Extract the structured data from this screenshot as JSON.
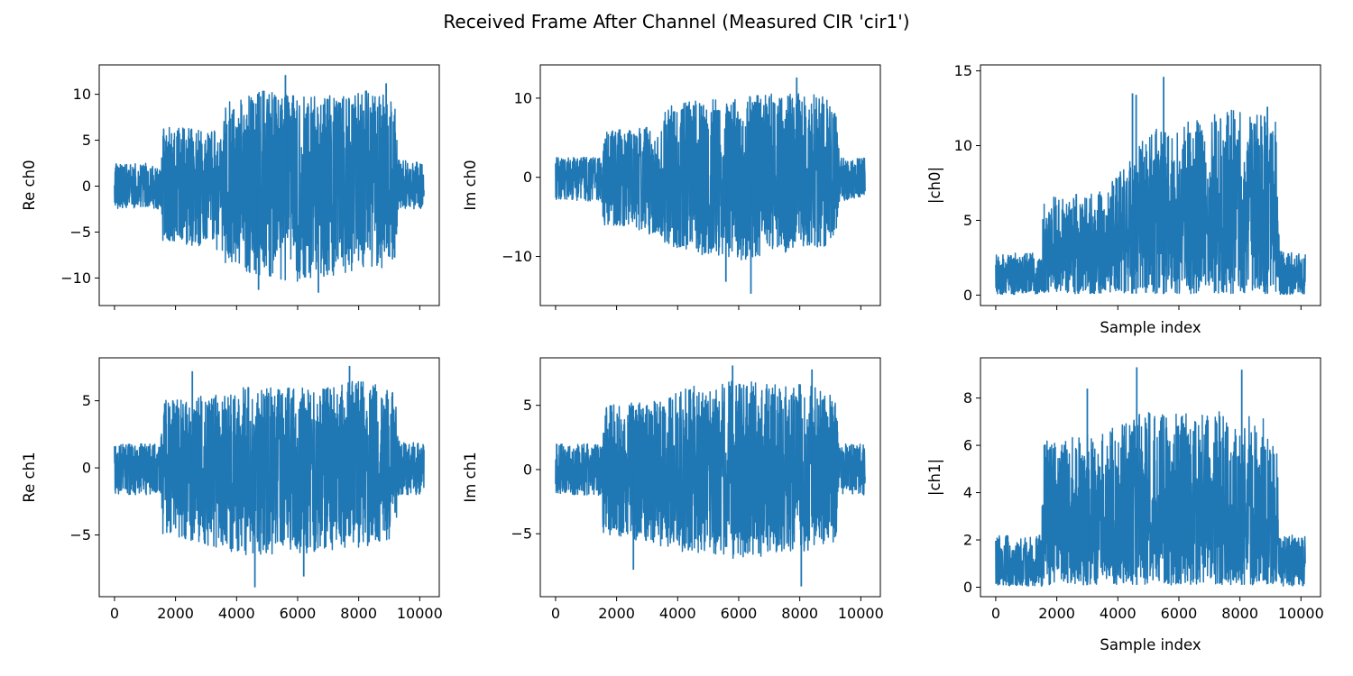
{
  "figure": {
    "suptitle": "Received Frame After Channel (Measured CIR 'cir1')"
  },
  "chart_data": [
    {
      "id": "re-ch0",
      "type": "line",
      "ylabel": "Re ch0",
      "xlabel": "",
      "xlim": [
        -500,
        10640
      ],
      "ylim": [
        -13,
        13.2
      ],
      "xticks": [
        0,
        2000,
        4000,
        6000,
        8000,
        10000
      ],
      "show_xticklabels": false,
      "yticks": [
        -10,
        -5,
        0,
        5,
        10
      ],
      "ytick_labels": [
        "−10",
        "−5",
        "0",
        "5",
        "10"
      ],
      "color": "#1f77b4",
      "series": [
        {
          "n_samples": 10140,
          "symmetric": true,
          "envelope": {
            "x": [
              0,
              1500,
              1560,
              3500,
              3600,
              5000,
              6000,
              7500,
              8200,
              8600,
              9000,
              9200,
              9300,
              10140
            ],
            "upper": [
              2.5,
              2.5,
              6.5,
              6.0,
              9.0,
              10.5,
              10.0,
              10.0,
              10.5,
              10.0,
              10.0,
              9.0,
              3.0,
              2.5
            ],
            "lower": [
              -2.5,
              -2.5,
              -6.0,
              -7.0,
              -8.5,
              -10.0,
              -10.5,
              -9.5,
              -9.5,
              -9.0,
              -9.0,
              -8.0,
              -2.5,
              -2.5
            ]
          },
          "spikes": [
            {
              "x": 5600,
              "y": 12.1
            },
            {
              "x": 6680,
              "y": -11.6
            },
            {
              "x": 4720,
              "y": -11.3
            },
            {
              "x": 8900,
              "y": 11.2
            }
          ]
        }
      ]
    },
    {
      "id": "im-ch0",
      "type": "line",
      "ylabel": "Im ch0",
      "xlabel": "",
      "xlim": [
        -500,
        10640
      ],
      "ylim": [
        -16.2,
        14.2
      ],
      "xticks": [
        0,
        2000,
        4000,
        6000,
        8000,
        10000
      ],
      "show_xticklabels": false,
      "yticks": [
        -10,
        0,
        10
      ],
      "ytick_labels": [
        "−10",
        "0",
        "10"
      ],
      "color": "#1f77b4",
      "series": [
        {
          "n_samples": 10140,
          "symmetric": true,
          "envelope": {
            "x": [
              0,
              1500,
              1560,
              3500,
              3600,
              5000,
              6000,
              7500,
              8200,
              8600,
              9000,
              9200,
              9300,
              10140
            ],
            "upper": [
              2.5,
              2.5,
              6.0,
              6.5,
              9.0,
              10.0,
              10.5,
              10.5,
              11.0,
              10.5,
              10.0,
              9.0,
              2.5,
              2.5
            ],
            "lower": [
              -3.0,
              -3.0,
              -6.0,
              -7.5,
              -8.5,
              -10.0,
              -10.5,
              -9.5,
              -9.0,
              -9.0,
              -8.5,
              -7.0,
              -3.0,
              -2.5
            ]
          },
          "spikes": [
            {
              "x": 5580,
              "y": -13.2
            },
            {
              "x": 6400,
              "y": -14.7
            },
            {
              "x": 7900,
              "y": 12.6
            }
          ]
        }
      ]
    },
    {
      "id": "abs-ch0",
      "type": "line",
      "ylabel": "|ch0|",
      "xlabel": "Sample index",
      "xlim": [
        -500,
        10640
      ],
      "ylim": [
        -0.7,
        15.4
      ],
      "xticks": [
        0,
        2000,
        4000,
        6000,
        8000,
        10000
      ],
      "show_xticklabels": false,
      "yticks": [
        0,
        5,
        10,
        15
      ],
      "ytick_labels": [
        "0",
        "5",
        "10",
        "15"
      ],
      "color": "#1f77b4",
      "series": [
        {
          "n_samples": 10140,
          "symmetric": false,
          "envelope": {
            "x": [
              0,
              1500,
              1560,
              3500,
              4200,
              5000,
              6000,
              7000,
              8000,
              9000,
              9200,
              9300,
              10140
            ],
            "upper": [
              2.8,
              2.8,
              6.5,
              7.0,
              9.0,
              11.0,
              11.5,
              12.0,
              12.5,
              12.0,
              11.5,
              3.0,
              2.8
            ],
            "lower": [
              0.05,
              0.05,
              0.1,
              0.1,
              0.1,
              0.1,
              0.1,
              0.1,
              0.1,
              0.1,
              0.1,
              0.05,
              0.05
            ]
          },
          "spikes": [
            {
              "x": 5500,
              "y": 14.6
            },
            {
              "x": 4480,
              "y": 13.5
            },
            {
              "x": 4600,
              "y": 13.4
            },
            {
              "x": 8900,
              "y": 12.6
            }
          ]
        }
      ]
    },
    {
      "id": "re-ch1",
      "type": "line",
      "ylabel": "Re ch1",
      "xlabel": "",
      "xlim": [
        -500,
        10640
      ],
      "ylim": [
        -9.6,
        8.2
      ],
      "xticks": [
        0,
        2000,
        4000,
        6000,
        8000,
        10000
      ],
      "xtick_labels": [
        "0",
        "2000",
        "4000",
        "6000",
        "8000",
        "10000"
      ],
      "yticks": [
        -5,
        0,
        5
      ],
      "ytick_labels": [
        "−5",
        "0",
        "5"
      ],
      "color": "#1f77b4",
      "series": [
        {
          "n_samples": 10140,
          "symmetric": true,
          "envelope": {
            "x": [
              0,
              1500,
              1560,
              3500,
              4200,
              5000,
              6000,
              7500,
              8000,
              9000,
              9200,
              9300,
              10140
            ],
            "upper": [
              1.8,
              1.8,
              5.0,
              5.5,
              6.0,
              6.0,
              6.0,
              6.5,
              6.5,
              6.0,
              5.5,
              2.0,
              1.8
            ],
            "lower": [
              -2.0,
              -2.0,
              -5.0,
              -6.0,
              -6.5,
              -6.5,
              -6.5,
              -6.0,
              -6.0,
              -5.5,
              -5.0,
              -2.0,
              -2.0
            ]
          },
          "spikes": [
            {
              "x": 4600,
              "y": -8.9
            },
            {
              "x": 6200,
              "y": -8.1
            },
            {
              "x": 7700,
              "y": 7.6
            },
            {
              "x": 2550,
              "y": 7.2
            }
          ]
        }
      ]
    },
    {
      "id": "im-ch1",
      "type": "line",
      "ylabel": "Im ch1",
      "xlabel": "",
      "xlim": [
        -500,
        10640
      ],
      "ylim": [
        -9.9,
        8.7
      ],
      "xticks": [
        0,
        2000,
        4000,
        6000,
        8000,
        10000
      ],
      "xtick_labels": [
        "0",
        "2000",
        "4000",
        "6000",
        "8000",
        "10000"
      ],
      "yticks": [
        -5,
        0,
        5
      ],
      "ytick_labels": [
        "−5",
        "0",
        "5"
      ],
      "color": "#1f77b4",
      "series": [
        {
          "n_samples": 10140,
          "symmetric": true,
          "envelope": {
            "x": [
              0,
              1500,
              1560,
              3500,
              4200,
              5000,
              6000,
              7500,
              8000,
              9000,
              9200,
              9300,
              10140
            ],
            "upper": [
              2.0,
              2.0,
              5.0,
              5.5,
              6.5,
              6.5,
              7.0,
              6.5,
              7.0,
              6.0,
              5.5,
              2.0,
              2.0
            ],
            "lower": [
              -2.0,
              -2.0,
              -5.0,
              -6.0,
              -6.5,
              -7.0,
              -7.0,
              -6.5,
              -6.5,
              -6.0,
              -5.5,
              -2.0,
              -2.0
            ]
          },
          "spikes": [
            {
              "x": 5800,
              "y": 8.1
            },
            {
              "x": 8050,
              "y": -9.1
            },
            {
              "x": 8400,
              "y": 7.8
            },
            {
              "x": 2550,
              "y": -7.8
            }
          ]
        }
      ]
    },
    {
      "id": "abs-ch1",
      "type": "line",
      "ylabel": "|ch1|",
      "xlabel": "Sample index",
      "xlim": [
        -500,
        10640
      ],
      "ylim": [
        -0.4,
        9.7
      ],
      "xticks": [
        0,
        2000,
        4000,
        6000,
        8000,
        10000
      ],
      "xtick_labels": [
        "0",
        "2000",
        "4000",
        "6000",
        "8000",
        "10000"
      ],
      "yticks": [
        0,
        2,
        4,
        6,
        8
      ],
      "ytick_labels": [
        "0",
        "2",
        "4",
        "6",
        "8"
      ],
      "color": "#1f77b4",
      "series": [
        {
          "n_samples": 10140,
          "symmetric": false,
          "envelope": {
            "x": [
              0,
              1500,
              1560,
              3500,
              4200,
              5000,
              6000,
              7000,
              8000,
              9000,
              9200,
              9300,
              10140
            ],
            "upper": [
              2.2,
              2.2,
              6.2,
              6.5,
              7.0,
              7.5,
              7.5,
              7.5,
              7.5,
              7.0,
              6.5,
              2.2,
              2.2
            ],
            "lower": [
              0.05,
              0.05,
              0.1,
              0.1,
              0.1,
              0.1,
              0.1,
              0.1,
              0.1,
              0.1,
              0.1,
              0.05,
              0.05
            ]
          },
          "spikes": [
            {
              "x": 4620,
              "y": 9.3
            },
            {
              "x": 8060,
              "y": 9.2
            },
            {
              "x": 3000,
              "y": 8.4
            }
          ]
        }
      ]
    }
  ]
}
